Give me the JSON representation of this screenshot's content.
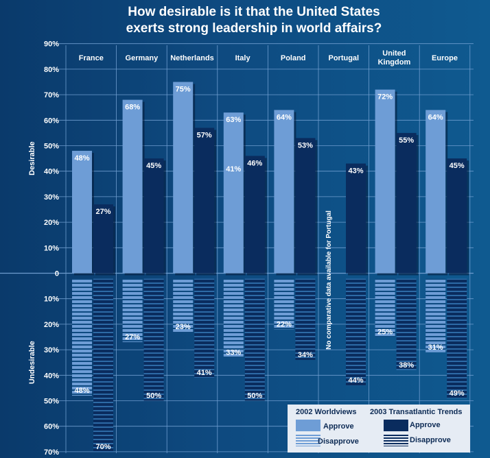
{
  "title_lines": [
    "How desirable is it that the United States",
    "exerts strong leadership in world affairs?"
  ],
  "colors": {
    "approve_2002": "#6e9dd6",
    "approve_2003": "#0a2c5e",
    "background": "#0d4276"
  },
  "chart_data": {
    "type": "bar",
    "title": "How desirable is it that the United States exerts strong leadership in world affairs?",
    "categories": [
      "France",
      "Germany",
      "Netherlands",
      "Italy",
      "Poland",
      "Portugal",
      "United Kingdom",
      "Europe"
    ],
    "category_lines": [
      [
        "France"
      ],
      [
        "Germany"
      ],
      [
        "Netherlands"
      ],
      [
        "Italy"
      ],
      [
        "Poland"
      ],
      [
        "Portugal"
      ],
      [
        "United",
        "Kingdom"
      ],
      [
        "Europe"
      ]
    ],
    "series": [
      {
        "name": "2002 Worldviews Approve",
        "values": [
          48,
          68,
          75,
          63,
          64,
          null,
          72,
          64
        ]
      },
      {
        "name": "2002 Worldviews Disapprove",
        "values": [
          48,
          27,
          23,
          33,
          22,
          null,
          25,
          31
        ]
      },
      {
        "name": "2003 Transatlantic Trends Approve",
        "values": [
          27,
          45,
          57,
          46,
          53,
          43,
          55,
          45
        ]
      },
      {
        "name": "2003 Transatlantic Trends Disapprove",
        "values": [
          70,
          50,
          41,
          50,
          34,
          44,
          38,
          49
        ]
      }
    ],
    "y_axis_labels": {
      "desirable": "Desirable",
      "undesirable": "Undesirable"
    },
    "y_ticks_up": [
      "90%",
      "80%",
      "70%",
      "60%",
      "50%",
      "40%",
      "30%",
      "20%",
      "10%",
      "0"
    ],
    "y_ticks_down": [
      "10%",
      "20%",
      "30%",
      "40%",
      "50%",
      "60%",
      "70%"
    ],
    "ylim": [
      -70,
      90
    ],
    "annotations": [
      {
        "text": "41%",
        "category": "Italy",
        "value": 41
      },
      {
        "text": "No comparative data available for Portugal",
        "category": "Portugal"
      }
    ],
    "grid": true,
    "legend": {
      "position": "bottom-right",
      "group_2002": "2002 Worldviews",
      "group_2003": "2003 Transatlantic Trends",
      "approve": "Approve",
      "disapprove": "Disapprove"
    }
  }
}
